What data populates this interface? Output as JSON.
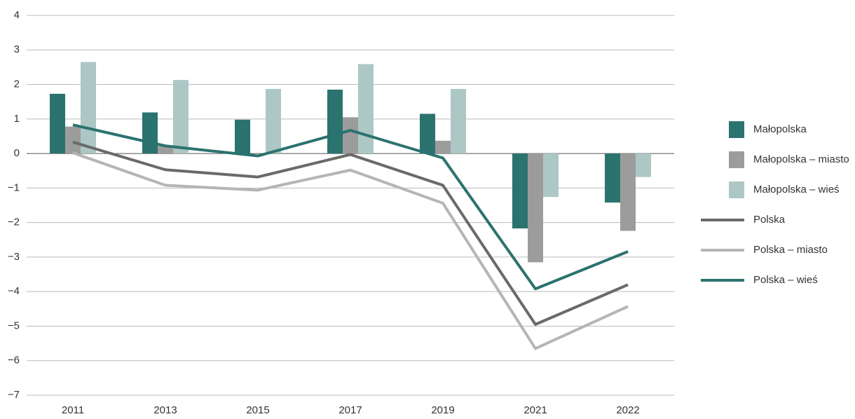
{
  "chart_data": {
    "type": "bar-line",
    "categories": [
      "2011",
      "2013",
      "2015",
      "2017",
      "2019",
      "2021",
      "2022"
    ],
    "series": [
      {
        "name": "Małopolska",
        "kind": "bar",
        "color": "#2b736f",
        "values": [
          1.73,
          1.19,
          0.98,
          1.85,
          1.15,
          -2.17,
          -1.42
        ]
      },
      {
        "name": "Małopolska – miasto",
        "kind": "bar",
        "color": "#9c9c9c",
        "values": [
          0.78,
          0.22,
          0,
          1.05,
          0.37,
          -3.15,
          -2.24
        ]
      },
      {
        "name": "Małopolska – wieś",
        "kind": "bar",
        "color": "#adc7c5",
        "values": [
          2.65,
          2.13,
          1.87,
          2.59,
          1.87,
          -1.26,
          -0.68
        ]
      },
      {
        "name": "Polska",
        "kind": "line",
        "color": "#6a6a6a",
        "values": [
          0.33,
          -0.47,
          -0.68,
          -0.03,
          -0.92,
          -4.95,
          -3.8
        ]
      },
      {
        "name": "Polska – miasto",
        "kind": "line",
        "color": "#b5b5b5",
        "values": [
          0.02,
          -0.92,
          -1.06,
          -0.48,
          -1.44,
          -5.65,
          -4.43
        ]
      },
      {
        "name": "Polska – wieś",
        "kind": "line",
        "color": "#2b736f",
        "values": [
          0.83,
          0.22,
          -0.07,
          0.67,
          -0.13,
          -3.92,
          -2.84
        ]
      }
    ],
    "ylim": [
      -7,
      4
    ],
    "yticks": [
      {
        "value": -7,
        "label": "−7"
      },
      {
        "value": -6,
        "label": "−6"
      },
      {
        "value": -5,
        "label": "−5"
      },
      {
        "value": -4,
        "label": "−4"
      },
      {
        "value": -3,
        "label": "−3"
      },
      {
        "value": -2,
        "label": "−2"
      },
      {
        "value": -1,
        "label": "−1"
      },
      0,
      1,
      2,
      3,
      4
    ],
    "grid": true,
    "legend": "right"
  }
}
